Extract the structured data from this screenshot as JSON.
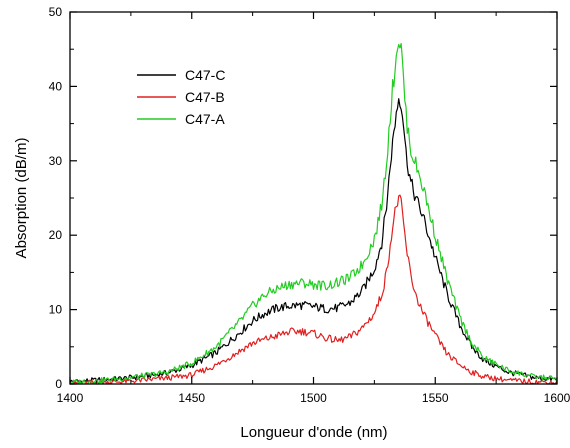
{
  "chart_data": {
    "type": "line",
    "title": "",
    "xlabel": "Longueur d'onde (nm)",
    "ylabel": "Absorption (dB/m)",
    "xlim": [
      1400,
      1600
    ],
    "ylim": [
      0,
      50
    ],
    "xticks": [
      1400,
      1450,
      1500,
      1550,
      1600
    ],
    "yticks": [
      0,
      10,
      20,
      30,
      40,
      50
    ],
    "grid": false,
    "legend_position": "upper-left",
    "series": [
      {
        "name": "C47-C",
        "color": "#000000",
        "x": [
          1400,
          1410,
          1420,
          1430,
          1440,
          1450,
          1460,
          1470,
          1475,
          1480,
          1485,
          1490,
          1495,
          1500,
          1505,
          1510,
          1515,
          1520,
          1525,
          1528,
          1530,
          1532,
          1534,
          1535,
          1536,
          1537,
          1538,
          1540,
          1542,
          1545,
          1550,
          1555,
          1560,
          1565,
          1570,
          1580,
          1590,
          1600
        ],
        "y": [
          0.3,
          0.5,
          0.7,
          1.0,
          1.5,
          2.5,
          4.2,
          7.0,
          8.5,
          9.5,
          10.2,
          10.5,
          10.6,
          10.4,
          10.1,
          10.2,
          10.9,
          12.5,
          15.5,
          19.0,
          24.0,
          31.0,
          36.5,
          38.5,
          38.0,
          35.0,
          31.0,
          27.0,
          25.0,
          22.5,
          17.0,
          12.0,
          8.0,
          5.0,
          3.2,
          1.6,
          0.9,
          0.6
        ]
      },
      {
        "name": "C47-B",
        "color": "#e02020",
        "x": [
          1400,
          1410,
          1420,
          1430,
          1440,
          1450,
          1460,
          1470,
          1475,
          1480,
          1485,
          1490,
          1495,
          1500,
          1505,
          1510,
          1515,
          1520,
          1525,
          1528,
          1530,
          1532,
          1534,
          1535,
          1536,
          1537,
          1538,
          1540,
          1542,
          1545,
          1550,
          1555,
          1560,
          1565,
          1570,
          1580,
          1590,
          1600
        ],
        "y": [
          0.1,
          0.2,
          0.3,
          0.5,
          0.8,
          1.2,
          2.5,
          4.5,
          5.5,
          6.0,
          6.5,
          7.0,
          7.1,
          6.8,
          6.2,
          5.8,
          6.3,
          7.5,
          9.5,
          12.0,
          15.0,
          20.0,
          24.0,
          25.0,
          24.0,
          21.5,
          18.5,
          14.5,
          12.0,
          9.5,
          6.5,
          4.0,
          2.6,
          1.6,
          1.0,
          0.5,
          0.3,
          0.2
        ]
      },
      {
        "name": "C47-A",
        "color": "#22cc22",
        "x": [
          1400,
          1410,
          1420,
          1430,
          1440,
          1450,
          1460,
          1470,
          1475,
          1480,
          1485,
          1490,
          1495,
          1500,
          1505,
          1510,
          1515,
          1520,
          1525,
          1528,
          1530,
          1532,
          1534,
          1535,
          1536,
          1537,
          1538,
          1540,
          1542,
          1545,
          1550,
          1555,
          1560,
          1565,
          1570,
          1580,
          1590,
          1600
        ],
        "y": [
          0.2,
          0.4,
          0.7,
          1.1,
          1.6,
          2.8,
          5.0,
          8.5,
          10.5,
          12.0,
          12.8,
          13.4,
          13.6,
          13.4,
          13.2,
          13.6,
          14.3,
          16.0,
          19.5,
          24.0,
          30.0,
          38.0,
          44.5,
          46.5,
          45.0,
          41.0,
          36.0,
          31.5,
          29.5,
          26.5,
          20.0,
          14.0,
          9.0,
          5.5,
          3.5,
          1.8,
          1.0,
          0.7
        ]
      }
    ]
  }
}
